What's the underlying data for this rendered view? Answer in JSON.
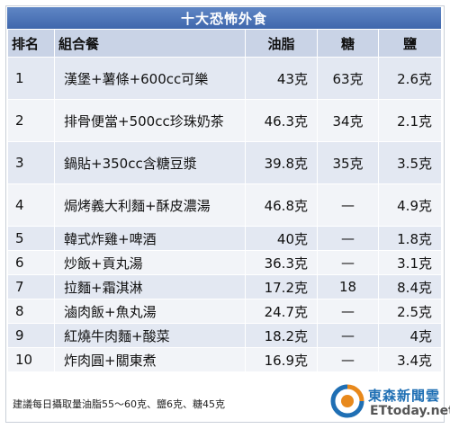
{
  "title": "十大恐怖外食",
  "headers": {
    "rank": "排名",
    "combo": "組合餐",
    "fat": "油脂",
    "sugar": "糖",
    "salt": "鹽"
  },
  "rows": [
    {
      "rank": "1",
      "combo": "漢堡+薯條+600cc可樂",
      "fat": "43克",
      "sugar": "63克",
      "salt": "2.6克"
    },
    {
      "rank": "2",
      "combo": "排骨便當+500cc珍珠奶茶",
      "fat": "46.3克",
      "sugar": "34克",
      "salt": "2.1克"
    },
    {
      "rank": "3",
      "combo": "鍋貼+350cc含糖豆漿",
      "fat": "39.8克",
      "sugar": "35克",
      "salt": "3.5克"
    },
    {
      "rank": "4",
      "combo": "焗烤義大利麵+酥皮濃湯",
      "fat": "46.8克",
      "sugar": "—",
      "salt": "4.9克"
    },
    {
      "rank": "5",
      "combo": "韓式炸雞+啤酒",
      "fat": "40克",
      "sugar": "—",
      "salt": "1.8克"
    },
    {
      "rank": "6",
      "combo": "炒飯+貢丸湯",
      "fat": "36.3克",
      "sugar": "—",
      "salt": "3.1克"
    },
    {
      "rank": "7",
      "combo": "拉麵+霜淇淋",
      "fat": "17.2克",
      "sugar": "18",
      "salt": "8.4克"
    },
    {
      "rank": "8",
      "combo": "滷肉飯+魚丸湯",
      "fat": "24.7克",
      "sugar": "—",
      "salt": "2.5克"
    },
    {
      "rank": "9",
      "combo": "紅燒牛肉麵+酸菜",
      "fat": "18.2克",
      "sugar": "—",
      "salt": "4克"
    },
    {
      "rank": "10",
      "combo": "炸肉圓+關東煮",
      "fat": "16.9克",
      "sugar": "—",
      "salt": "3.4克"
    }
  ],
  "footnote": "建議每日攝取量油脂55～60克、鹽6克、糖45克",
  "logo": {
    "name_cn": "東森新聞雲",
    "name_en": "ETtoday.net",
    "icon": "ettoday-logo-icon",
    "colors": {
      "blue": "#1f6fb4",
      "orange": "#e8891c",
      "gray": "#555555"
    }
  },
  "colors": {
    "title_bg": "#4a72b6",
    "header_bg": "#c9d3e6",
    "row_odd": "#e3e8f2",
    "row_even": "#f2f4f8"
  }
}
